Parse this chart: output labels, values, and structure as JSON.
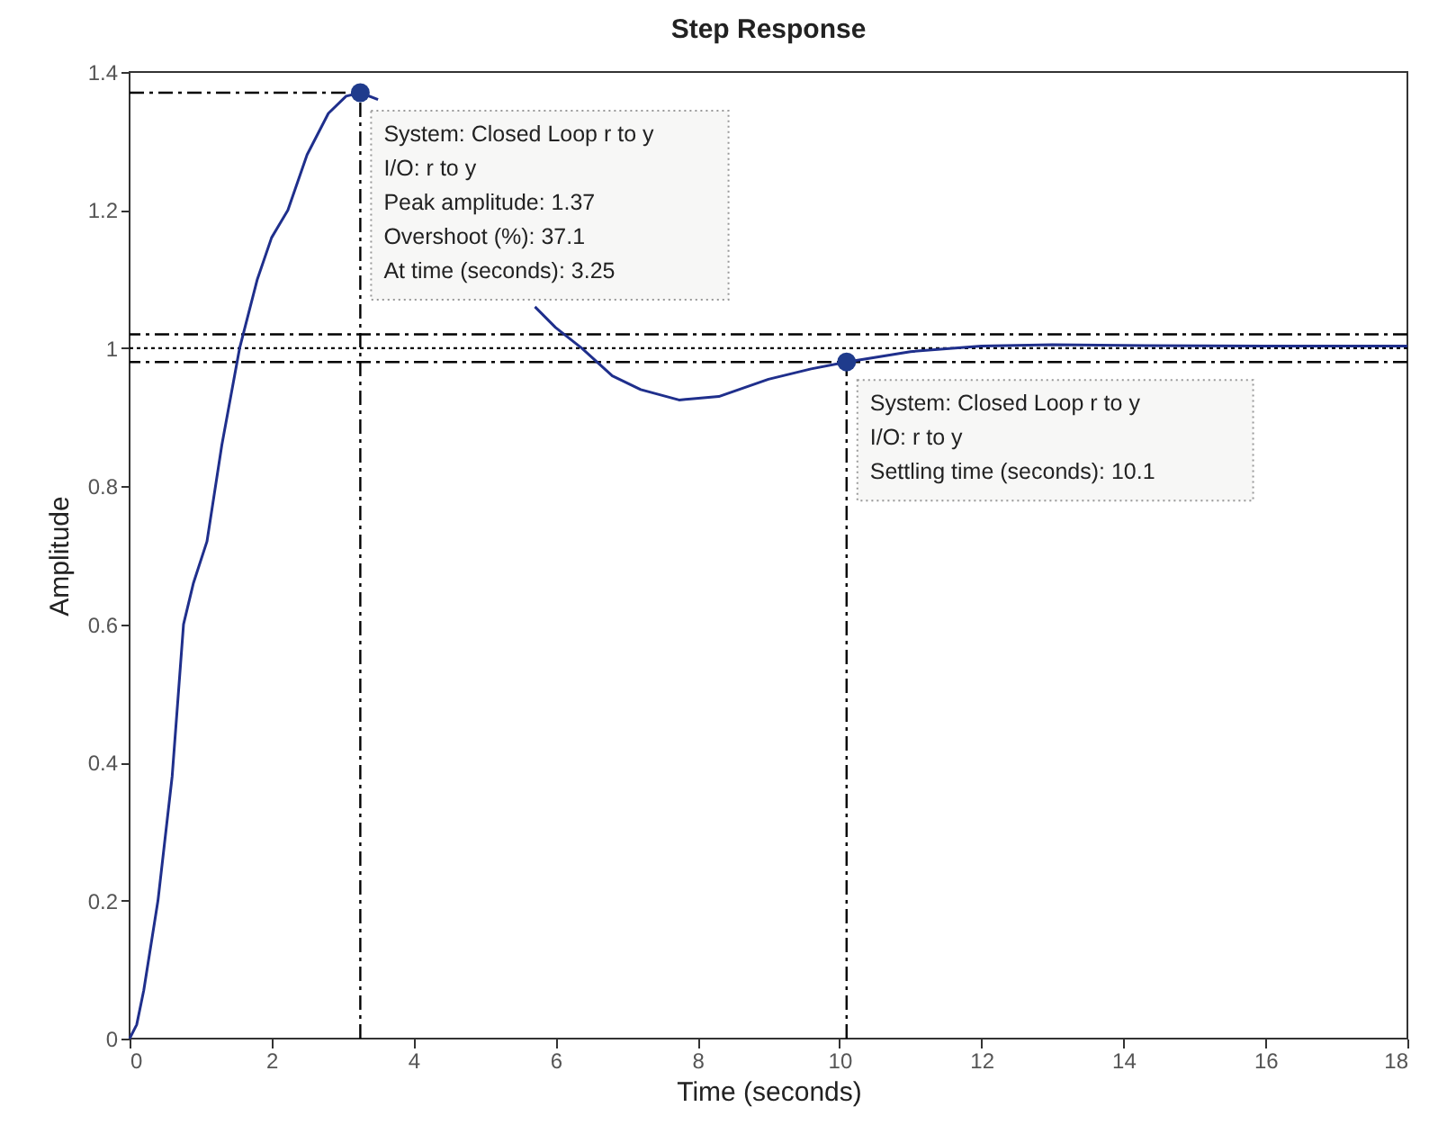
{
  "chart_data": {
    "type": "line",
    "title": "Step Response",
    "xlabel": "Time (seconds)",
    "ylabel": "Amplitude",
    "xlim": [
      0,
      18
    ],
    "xticks": [
      0,
      2,
      4,
      6,
      8,
      10,
      12,
      14,
      16,
      18
    ],
    "ylim": [
      0,
      1.4
    ],
    "yticks": [
      0,
      0.2,
      0.4,
      0.6,
      0.8,
      1,
      1.2,
      1.4
    ],
    "grid": false,
    "series": [
      {
        "color": "#1f2f8c",
        "x": [
          0,
          0.1,
          0.2,
          0.4,
          0.6,
          0.76,
          0.9,
          1.09,
          1.3,
          1.55,
          1.8,
          2.0,
          2.23,
          2.5,
          2.8,
          3.05,
          3.25,
          3.5,
          4.0,
          4.5,
          5.0,
          5.4,
          5.71,
          6.0,
          6.37,
          6.8,
          7.2,
          7.74,
          8.3,
          9.0,
          9.6,
          10.1,
          11.0,
          12.0,
          13.0,
          14.0,
          16.0,
          18.0
        ],
        "values": [
          0,
          0.02,
          0.07,
          0.2,
          0.38,
          0.6,
          0.66,
          0.72,
          0.86,
          1.0,
          1.1,
          1.16,
          1.2,
          1.28,
          1.34,
          1.365,
          1.37,
          1.36,
          null,
          null,
          null,
          null,
          1.06,
          1.03,
          1.0,
          0.96,
          0.94,
          0.925,
          0.93,
          0.955,
          0.97,
          0.98,
          0.995,
          1.003,
          1.005,
          1.004,
          1.003,
          1.003
        ]
      },
      {
        "type": "line",
        "color": "#000000",
        "line_style": "dashed",
        "x": [
          0,
          3.25
        ],
        "values": [
          1.37,
          1.37
        ]
      },
      {
        "type": "line",
        "color": "#000000",
        "line_style": "dashed",
        "x": [
          3.25,
          3.25
        ],
        "values": [
          0,
          1.37
        ]
      },
      {
        "type": "line",
        "color": "#000000",
        "line_style": "dashed",
        "x": [
          10.1,
          10.1
        ],
        "values": [
          0,
          0.98
        ]
      },
      {
        "type": "scatter",
        "color": "#1f3b8c",
        "marker": "circle",
        "x": [
          3.25,
          10.1
        ],
        "values": [
          1.37,
          0.98
        ]
      }
    ],
    "ref_lines": [
      {
        "axis": "y",
        "value": 1.02,
        "line_style": "dashed",
        "color": "#000000"
      },
      {
        "axis": "y",
        "value": 1,
        "line_style": "dotted",
        "color": "#000000"
      },
      {
        "axis": "y",
        "value": 0.98,
        "line_style": "dashed",
        "color": "#000000"
      }
    ],
    "annotations": [
      {
        "text": "System: Closed Loop r to y\nI/O: r to y\nPeak amplitude: 1.37\nOvershoot (%): 37.1\nAt time (seconds): 3.25",
        "x": 3.25,
        "y": 1.37
      },
      {
        "text": "System: Closed Loop r to y\nI/O: r to y\nSettling time (seconds): 10.1",
        "x": 10.1,
        "y": 0.98
      }
    ]
  }
}
